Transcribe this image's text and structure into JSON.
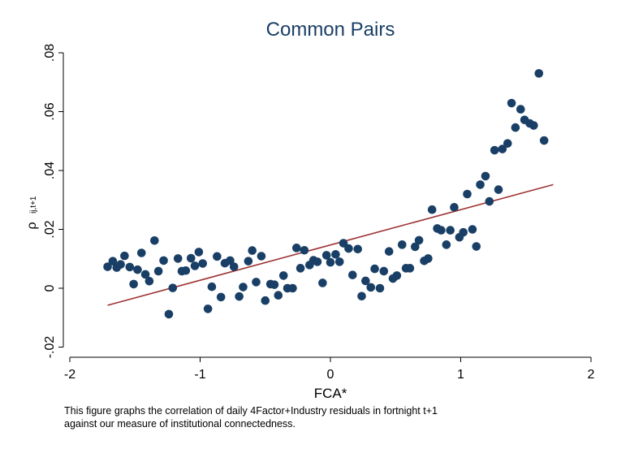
{
  "chart_data": {
    "type": "scatter",
    "title": "Common Pairs",
    "xlabel": "FCA*",
    "ylabel_main": "ρ",
    "ylabel_sub": "ij,t+1",
    "xlim": [
      -2,
      2
    ],
    "ylim": [
      -0.02,
      0.08
    ],
    "x_ticks": [
      -2,
      -1,
      0,
      1,
      2
    ],
    "x_tick_labels": [
      "-2",
      "-1",
      "0",
      "1",
      "2"
    ],
    "y_ticks": [
      -0.02,
      0,
      0.02,
      0.04,
      0.06,
      0.08
    ],
    "y_tick_labels": [
      "-.02",
      "0",
      ".02",
      ".04",
      ".06",
      ".08"
    ],
    "grid": false,
    "colors": {
      "points": "#1a3f66",
      "fit_line": "#9e3435",
      "axis": "#000000"
    },
    "series": [
      {
        "points": [
          [
            -1.71,
            0.0073
          ],
          [
            -1.67,
            0.0092
          ],
          [
            -1.64,
            0.007
          ],
          [
            -1.61,
            0.0081
          ],
          [
            -1.58,
            0.011
          ],
          [
            -1.54,
            0.0072
          ],
          [
            -1.51,
            0.0014
          ],
          [
            -1.48,
            0.0063
          ],
          [
            -1.45,
            0.012
          ],
          [
            -1.42,
            0.0047
          ],
          [
            -1.39,
            0.0024
          ],
          [
            -1.35,
            0.0162
          ],
          [
            -1.32,
            0.0058
          ],
          [
            -1.28,
            0.0094
          ],
          [
            -1.24,
            -0.0088
          ],
          [
            -1.21,
            0.0001
          ],
          [
            -1.17,
            0.0101
          ],
          [
            -1.14,
            0.0058
          ],
          [
            -1.11,
            0.006
          ],
          [
            -1.07,
            0.0102
          ],
          [
            -1.04,
            0.0076
          ],
          [
            -1.01,
            0.0123
          ],
          [
            -0.98,
            0.0084
          ],
          [
            -0.94,
            -0.007
          ],
          [
            -0.91,
            0.0005
          ],
          [
            -0.87,
            0.0108
          ],
          [
            -0.84,
            -0.003
          ],
          [
            -0.81,
            0.0085
          ],
          [
            -0.77,
            0.0094
          ],
          [
            -0.74,
            0.0073
          ],
          [
            -0.7,
            -0.0028
          ],
          [
            -0.67,
            0.0004
          ],
          [
            -0.63,
            0.0092
          ],
          [
            -0.6,
            0.0128
          ],
          [
            -0.57,
            0.0021
          ],
          [
            -0.53,
            0.0109
          ],
          [
            -0.5,
            -0.0042
          ],
          [
            -0.46,
            0.0014
          ],
          [
            -0.43,
            0.0012
          ],
          [
            -0.4,
            -0.0024
          ],
          [
            -0.36,
            0.0043
          ],
          [
            -0.33,
            0.0
          ],
          [
            -0.29,
            0.0
          ],
          [
            -0.26,
            0.0137
          ],
          [
            -0.23,
            0.0068
          ],
          [
            -0.2,
            0.0129
          ],
          [
            -0.16,
            0.0079
          ],
          [
            -0.13,
            0.0095
          ],
          [
            -0.1,
            0.009
          ],
          [
            -0.06,
            0.0018
          ],
          [
            -0.03,
            0.0112
          ],
          [
            0.0,
            0.0088
          ],
          [
            0.04,
            0.0115
          ],
          [
            0.07,
            0.009
          ],
          [
            0.1,
            0.0153
          ],
          [
            0.14,
            0.0135
          ],
          [
            0.17,
            0.0045
          ],
          [
            0.21,
            0.0133
          ],
          [
            0.24,
            -0.0027
          ],
          [
            0.27,
            0.0025
          ],
          [
            0.31,
            0.0003
          ],
          [
            0.34,
            0.0066
          ],
          [
            0.38,
            0.0
          ],
          [
            0.41,
            0.0058
          ],
          [
            0.45,
            0.0125
          ],
          [
            0.48,
            0.0033
          ],
          [
            0.51,
            0.0043
          ],
          [
            0.55,
            0.0148
          ],
          [
            0.58,
            0.0068
          ],
          [
            0.61,
            0.0068
          ],
          [
            0.65,
            0.0141
          ],
          [
            0.68,
            0.0163
          ],
          [
            0.72,
            0.0093
          ],
          [
            0.75,
            0.0101
          ],
          [
            0.78,
            0.0267
          ],
          [
            0.82,
            0.0203
          ],
          [
            0.85,
            0.0197
          ],
          [
            0.89,
            0.0148
          ],
          [
            0.92,
            0.0197
          ],
          [
            0.95,
            0.0275
          ],
          [
            0.99,
            0.0173
          ],
          [
            1.02,
            0.019
          ],
          [
            1.05,
            0.032
          ],
          [
            1.09,
            0.02
          ],
          [
            1.12,
            0.0142
          ],
          [
            1.15,
            0.0352
          ],
          [
            1.19,
            0.0381
          ],
          [
            1.22,
            0.0295
          ],
          [
            1.26,
            0.0469
          ],
          [
            1.29,
            0.0335
          ],
          [
            1.32,
            0.0473
          ],
          [
            1.36,
            0.0492
          ],
          [
            1.39,
            0.0629
          ],
          [
            1.42,
            0.0546
          ],
          [
            1.46,
            0.0608
          ],
          [
            1.49,
            0.0572
          ],
          [
            1.53,
            0.056
          ],
          [
            1.56,
            0.0553
          ],
          [
            1.6,
            0.073
          ],
          [
            1.64,
            0.0502
          ]
        ]
      }
    ],
    "fit_line": {
      "x": [
        -1.71,
        1.71
      ],
      "y": [
        -0.0058,
        0.0352
      ]
    }
  },
  "caption": {
    "line1": "This figure graphs the correlation of daily 4Factor+Industry residuals in fortnight t+1",
    "line2": " against our measure of institutional connectedness."
  }
}
